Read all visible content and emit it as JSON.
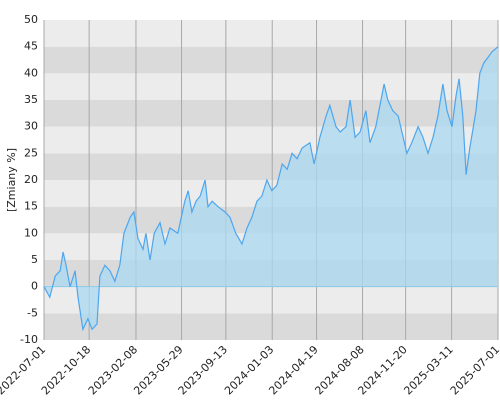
{
  "chart_data": {
    "type": "area",
    "y_label": "[Zmiany %]",
    "x": [
      "2022-07-01",
      "2022-07-15",
      "2022-07-28",
      "2022-08-09",
      "2022-08-16",
      "2022-08-23",
      "2022-09-02",
      "2022-09-14",
      "2022-09-21",
      "2022-10-03",
      "2022-10-15",
      "2022-10-25",
      "2022-11-06",
      "2022-11-13",
      "2022-11-25",
      "2022-12-07",
      "2022-12-19",
      "2022-12-31",
      "2023-01-10",
      "2023-01-25",
      "2023-02-03",
      "2023-02-13",
      "2023-02-25",
      "2023-03-04",
      "2023-03-14",
      "2023-03-24",
      "2023-04-07",
      "2023-04-19",
      "2023-05-01",
      "2023-05-20",
      "2023-06-06",
      "2023-06-14",
      "2023-06-23",
      "2023-07-03",
      "2023-07-13",
      "2023-07-25",
      "2023-08-01",
      "2023-08-11",
      "2023-08-25",
      "2023-09-11",
      "2023-09-23",
      "2023-10-07",
      "2023-10-22",
      "2023-11-03",
      "2023-11-15",
      "2023-11-27",
      "2023-12-09",
      "2023-12-21",
      "2024-01-02",
      "2024-01-14",
      "2024-01-27",
      "2024-02-08",
      "2024-02-20",
      "2024-03-03",
      "2024-03-15",
      "2024-04-03",
      "2024-04-13",
      "2024-04-27",
      "2024-05-12",
      "2024-05-21",
      "2024-06-05",
      "2024-06-15",
      "2024-06-29",
      "2024-07-09",
      "2024-07-21",
      "2024-08-02",
      "2024-08-16",
      "2024-08-26",
      "2024-09-09",
      "2024-09-29",
      "2024-10-08",
      "2024-10-20",
      "2024-11-02",
      "2024-11-11",
      "2024-11-23",
      "2024-12-05",
      "2024-12-20",
      "2025-01-01",
      "2025-01-13",
      "2025-01-25",
      "2025-02-06",
      "2025-02-18",
      "2025-02-28",
      "2025-03-12",
      "2025-03-22",
      "2025-03-29",
      "2025-04-07",
      "2025-04-15",
      "2025-04-24",
      "2025-05-09",
      "2025-05-18",
      "2025-05-28",
      "2025-06-07",
      "2025-06-16",
      "2025-07-01"
    ],
    "values": [
      0,
      -2,
      2,
      3,
      6.5,
      4,
      0,
      3,
      -2,
      -8,
      -6,
      -8,
      -7,
      2,
      4,
      3,
      1,
      4,
      10,
      13,
      14,
      9,
      7,
      10,
      5,
      10,
      12,
      8,
      11,
      10,
      16,
      18,
      14,
      16,
      17,
      20,
      15,
      16,
      15,
      14,
      13,
      10,
      8,
      11,
      13,
      16,
      17,
      20,
      18,
      19,
      23,
      22,
      25,
      24,
      26,
      27,
      23,
      28,
      32,
      34,
      30,
      29,
      30,
      35,
      28,
      29,
      33,
      27,
      30,
      38,
      35,
      33,
      32,
      29,
      25,
      27,
      30,
      28,
      25,
      28,
      32,
      38,
      33,
      30,
      36,
      39,
      32,
      21,
      26,
      33,
      40,
      42,
      43,
      44,
      45
    ],
    "color": "#4da6ef",
    "fill": "#a9daf0",
    "xlim": [
      "2022-07-01",
      "2025-07-01"
    ],
    "xticks": [
      "2022-07-01",
      "2022-10-18",
      "2023-02-08",
      "2023-05-29",
      "2023-09-13",
      "2024-01-03",
      "2024-04-19",
      "2024-08-08",
      "2024-11-20",
      "2025-03-11",
      "2025-07-01"
    ],
    "ylim": [
      -10,
      50
    ],
    "yticks": [
      -10,
      -5,
      0,
      5,
      10,
      15,
      20,
      25,
      30,
      35,
      40,
      45,
      50
    ],
    "grid": true
  }
}
